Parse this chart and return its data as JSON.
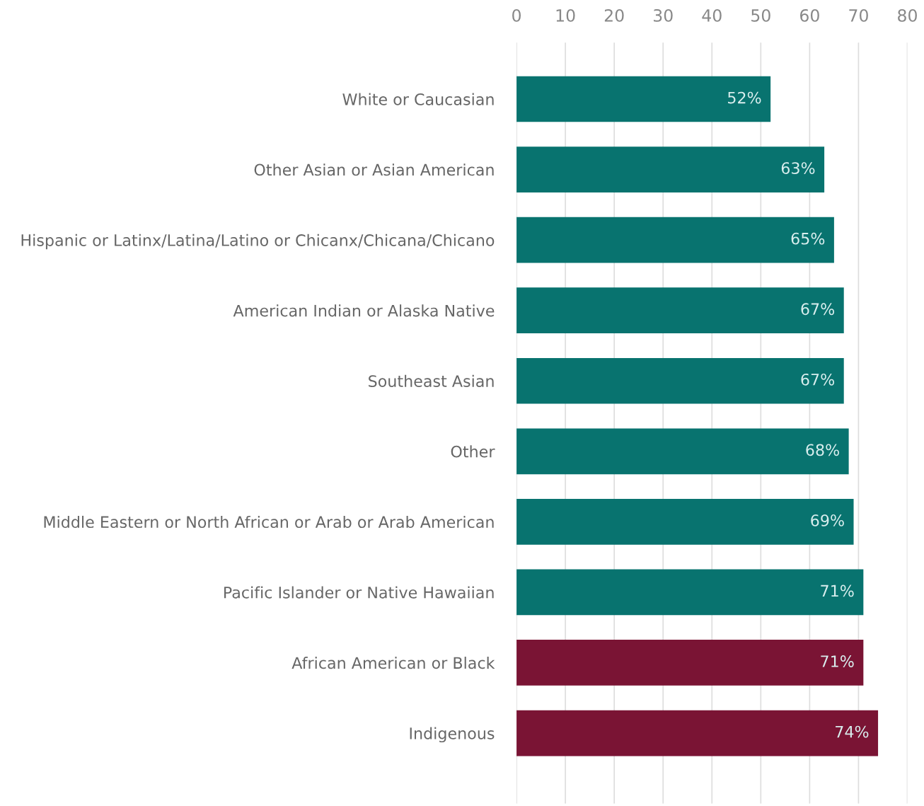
{
  "chart_data": {
    "type": "bar",
    "orientation": "horizontal",
    "categories": [
      "White or Caucasian",
      "Other Asian or Asian American",
      "Hispanic or Latinx/Latina/Latino or Chicanx/Chicana/Chicano",
      "American Indian or Alaska Native",
      "Southeast Asian",
      "Other",
      "Middle Eastern or North African or Arab or Arab American",
      "Pacific Islander or Native Hawaiian",
      "African American or Black",
      "Indigenous"
    ],
    "values": [
      52,
      63,
      65,
      67,
      67,
      68,
      69,
      71,
      71,
      74
    ],
    "value_labels": [
      "52%",
      "63%",
      "65%",
      "67%",
      "67%",
      "68%",
      "69%",
      "71%",
      "71%",
      "74%"
    ],
    "colors": [
      "#08736f",
      "#08736f",
      "#08736f",
      "#08736f",
      "#08736f",
      "#08736f",
      "#08736f",
      "#08736f",
      "#7a1434",
      "#7a1434"
    ],
    "xlim": [
      0,
      80
    ],
    "xticks": [
      0,
      10,
      20,
      30,
      40,
      50,
      60,
      70,
      80
    ],
    "grid": "x"
  }
}
